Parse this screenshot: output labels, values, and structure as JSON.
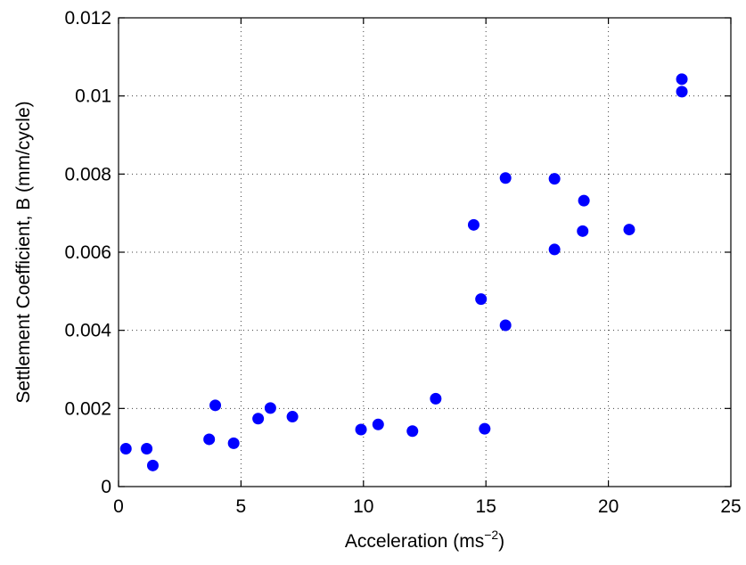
{
  "chart_data": {
    "type": "scatter",
    "xlabel": "Acceleration (ms",
    "xlabel_sup": "−2",
    "xlabel_suffix": ")",
    "ylabel": "Settlement Coefficient, B (mm/cycle)",
    "xlim": [
      0,
      25
    ],
    "ylim": [
      0,
      0.012
    ],
    "xticks": [
      0,
      5,
      10,
      15,
      20,
      25
    ],
    "xtick_labels": [
      "0",
      "5",
      "10",
      "15",
      "20",
      "25"
    ],
    "yticks": [
      0,
      0.002,
      0.004,
      0.006,
      0.008,
      0.01,
      0.012
    ],
    "ytick_labels": [
      "0",
      "0.002",
      "0.004",
      "0.006",
      "0.008",
      "0.01",
      "0.012"
    ],
    "grid": true,
    "marker_color": "#0000ff",
    "points": [
      {
        "x": 0.3,
        "y": 0.00097
      },
      {
        "x": 1.15,
        "y": 0.00097
      },
      {
        "x": 1.4,
        "y": 0.00054
      },
      {
        "x": 3.7,
        "y": 0.00121
      },
      {
        "x": 3.95,
        "y": 0.00208
      },
      {
        "x": 4.7,
        "y": 0.00111
      },
      {
        "x": 5.7,
        "y": 0.00174
      },
      {
        "x": 6.2,
        "y": 0.00201
      },
      {
        "x": 7.1,
        "y": 0.00179
      },
      {
        "x": 9.9,
        "y": 0.00146
      },
      {
        "x": 10.6,
        "y": 0.00159
      },
      {
        "x": 12.0,
        "y": 0.00142
      },
      {
        "x": 12.95,
        "y": 0.00225
      },
      {
        "x": 14.5,
        "y": 0.0067
      },
      {
        "x": 14.8,
        "y": 0.0048
      },
      {
        "x": 14.95,
        "y": 0.00148
      },
      {
        "x": 15.8,
        "y": 0.0079
      },
      {
        "x": 15.8,
        "y": 0.00413
      },
      {
        "x": 17.8,
        "y": 0.00788
      },
      {
        "x": 17.8,
        "y": 0.00607
      },
      {
        "x": 18.95,
        "y": 0.00654
      },
      {
        "x": 19.0,
        "y": 0.00732
      },
      {
        "x": 20.85,
        "y": 0.00658
      },
      {
        "x": 23.0,
        "y": 0.01043
      },
      {
        "x": 23.0,
        "y": 0.01011
      }
    ]
  }
}
